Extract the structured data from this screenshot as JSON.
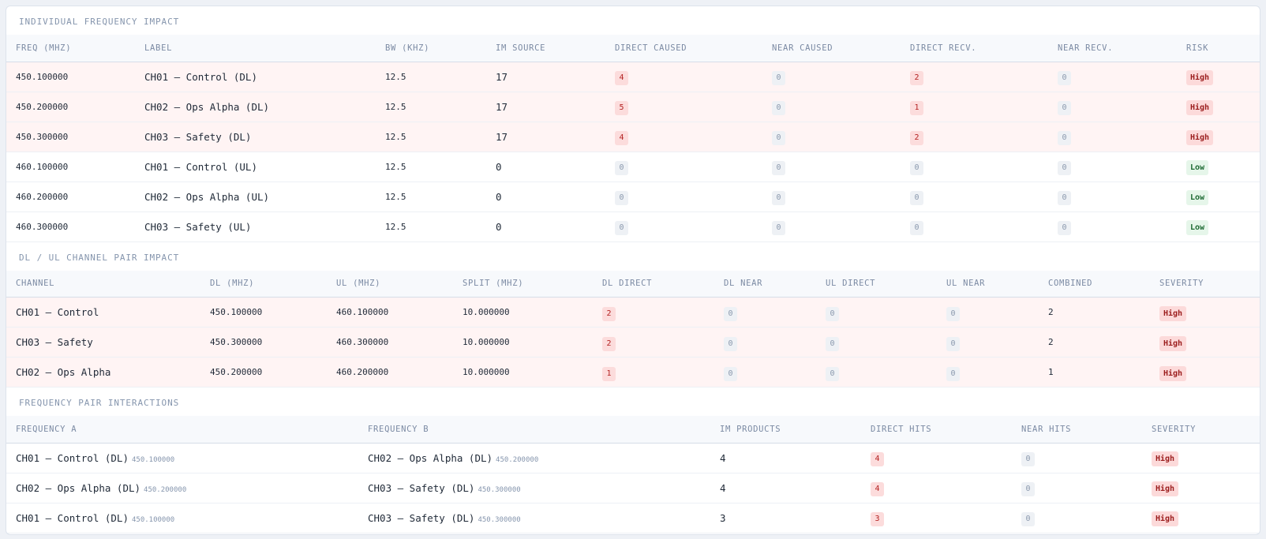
{
  "individual": {
    "title": "INDIVIDUAL FREQUENCY IMPACT",
    "headers": [
      "FREQ (MHZ)",
      "LABEL",
      "BW (KHZ)",
      "IM SOURCE",
      "DIRECT CAUSED",
      "NEAR CAUSED",
      "DIRECT RECV.",
      "NEAR RECV.",
      "RISK"
    ],
    "rows": [
      {
        "freq": "450.100000",
        "label": "CH01 — Control (DL)",
        "bw": "12.5",
        "im": "17",
        "dc": "4",
        "nc": "0",
        "dr": "2",
        "nr": "0",
        "risk": "High"
      },
      {
        "freq": "450.200000",
        "label": "CH02 — Ops Alpha (DL)",
        "bw": "12.5",
        "im": "17",
        "dc": "5",
        "nc": "0",
        "dr": "1",
        "nr": "0",
        "risk": "High"
      },
      {
        "freq": "450.300000",
        "label": "CH03 — Safety (DL)",
        "bw": "12.5",
        "im": "17",
        "dc": "4",
        "nc": "0",
        "dr": "2",
        "nr": "0",
        "risk": "High"
      },
      {
        "freq": "460.100000",
        "label": "CH01 — Control (UL)",
        "bw": "12.5",
        "im": "0",
        "dc": "0",
        "nc": "0",
        "dr": "0",
        "nr": "0",
        "risk": "Low"
      },
      {
        "freq": "460.200000",
        "label": "CH02 — Ops Alpha (UL)",
        "bw": "12.5",
        "im": "0",
        "dc": "0",
        "nc": "0",
        "dr": "0",
        "nr": "0",
        "risk": "Low"
      },
      {
        "freq": "460.300000",
        "label": "CH03 — Safety (UL)",
        "bw": "12.5",
        "im": "0",
        "dc": "0",
        "nc": "0",
        "dr": "0",
        "nr": "0",
        "risk": "Low"
      }
    ]
  },
  "pairs": {
    "title": "DL / UL CHANNEL PAIR IMPACT",
    "headers": [
      "CHANNEL",
      "DL (MHZ)",
      "UL (MHZ)",
      "SPLIT (MHZ)",
      "DL DIRECT",
      "DL NEAR",
      "UL DIRECT",
      "UL NEAR",
      "COMBINED",
      "SEVERITY"
    ],
    "rows": [
      {
        "channel": "CH01 — Control",
        "dl": "450.100000",
        "ul": "460.100000",
        "split": "10.000000",
        "dld": "2",
        "dln": "0",
        "uld": "0",
        "uln": "0",
        "combined": "2",
        "severity": "High"
      },
      {
        "channel": "CH03 — Safety",
        "dl": "450.300000",
        "ul": "460.300000",
        "split": "10.000000",
        "dld": "2",
        "dln": "0",
        "uld": "0",
        "uln": "0",
        "combined": "2",
        "severity": "High"
      },
      {
        "channel": "CH02 — Ops Alpha",
        "dl": "450.200000",
        "ul": "460.200000",
        "split": "10.000000",
        "dld": "1",
        "dln": "0",
        "uld": "0",
        "uln": "0",
        "combined": "1",
        "severity": "High"
      }
    ]
  },
  "interactions": {
    "title": "FREQUENCY PAIR INTERACTIONS",
    "headers": [
      "FREQUENCY A",
      "FREQUENCY B",
      "IM PRODUCTS",
      "DIRECT HITS",
      "NEAR HITS",
      "SEVERITY"
    ],
    "rows": [
      {
        "a_label": "CH01 — Control (DL)",
        "a_freq": "450.100000",
        "b_label": "CH02 — Ops Alpha (DL)",
        "b_freq": "450.200000",
        "im": "4",
        "direct": "4",
        "near": "0",
        "severity": "High"
      },
      {
        "a_label": "CH02 — Ops Alpha (DL)",
        "a_freq": "450.200000",
        "b_label": "CH03 — Safety (DL)",
        "b_freq": "450.300000",
        "im": "4",
        "direct": "4",
        "near": "0",
        "severity": "High"
      },
      {
        "a_label": "CH01 — Control (DL)",
        "a_freq": "450.100000",
        "b_label": "CH03 — Safety (DL)",
        "b_freq": "450.300000",
        "im": "3",
        "direct": "3",
        "near": "0",
        "severity": "High"
      }
    ]
  }
}
